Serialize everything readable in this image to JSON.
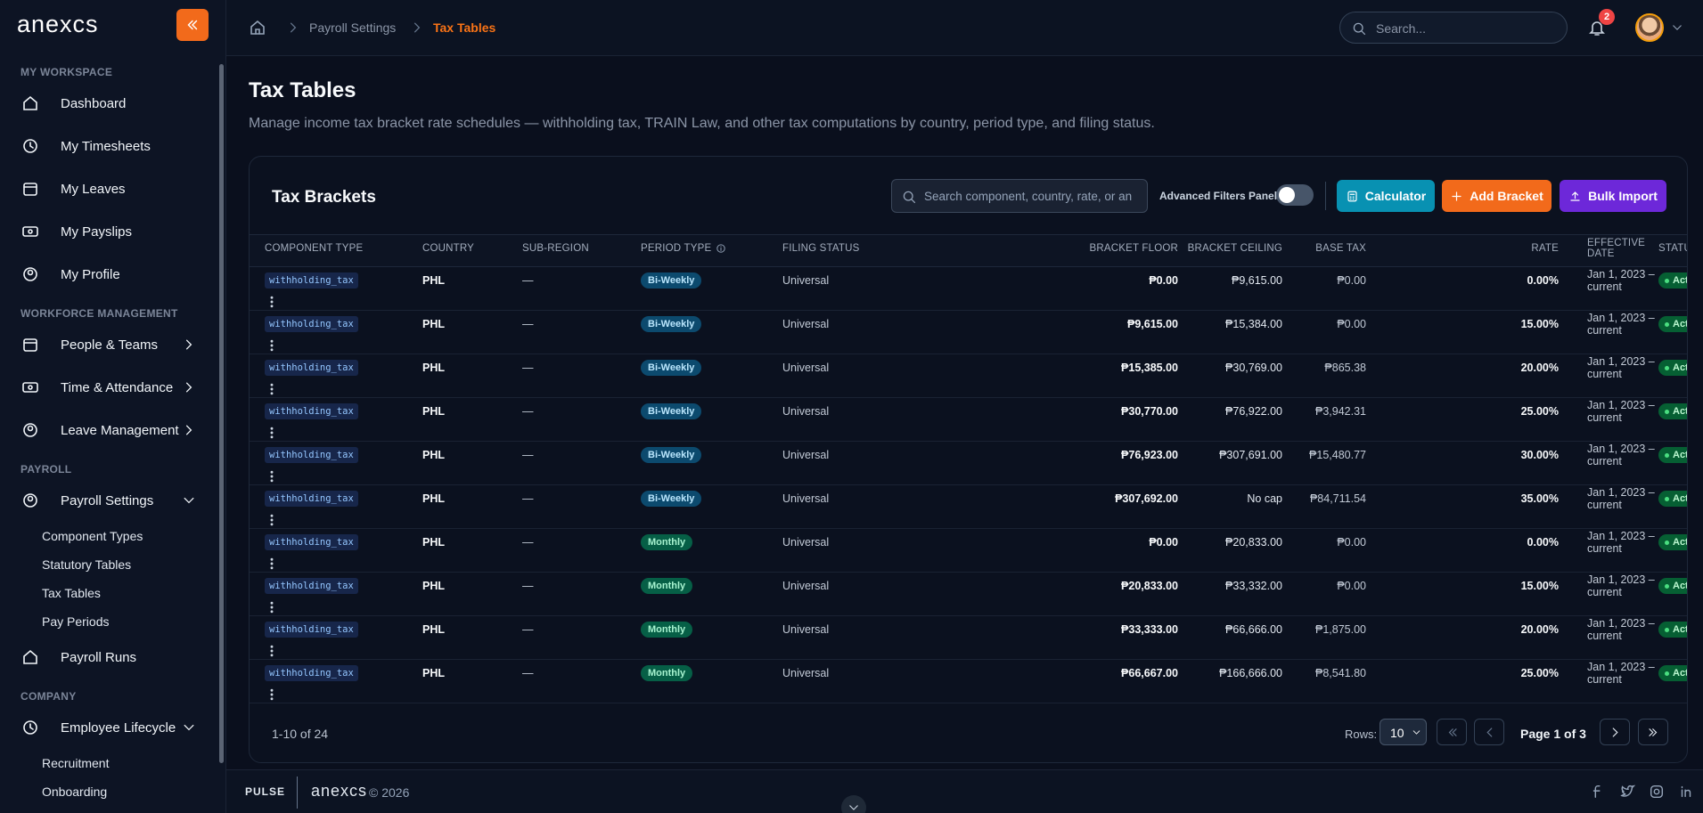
{
  "brand": "anexcs",
  "sidebar": {
    "sections": [
      {
        "title": "MY WORKSPACE",
        "items": [
          {
            "label": "Dashboard"
          },
          {
            "label": "My Timesheets"
          },
          {
            "label": "My Leaves"
          },
          {
            "label": "My Payslips"
          },
          {
            "label": "My Profile"
          }
        ]
      },
      {
        "title": "WORKFORCE MANAGEMENT",
        "items": [
          {
            "label": "People & Teams"
          },
          {
            "label": "Time & Attendance"
          },
          {
            "label": "Leave Management"
          }
        ]
      },
      {
        "title": "PAYROLL",
        "items": [
          {
            "label": "Payroll Settings",
            "children": [
              "Component Types",
              "Statutory Tables",
              "Tax Tables",
              "Pay Periods"
            ]
          },
          {
            "label": "Payroll Runs"
          }
        ]
      },
      {
        "title": "COMPANY",
        "items": [
          {
            "label": "Employee Lifecycle",
            "children": [
              "Recruitment",
              "Onboarding"
            ]
          }
        ]
      }
    ]
  },
  "breadcrumb": [
    "Payroll Settings",
    "Tax Tables"
  ],
  "search_placeholder": "Search...",
  "notifications": "2",
  "page": {
    "title": "Tax Tables",
    "description": "Manage income tax bracket rate schedules — withholding tax, TRAIN Law, and other tax computations by country, period type, and filing status."
  },
  "card": {
    "title": "Tax Brackets",
    "search_placeholder": "Search component, country, rate, or an",
    "toggle_label": "Advanced Filters Panel",
    "buttons": [
      "Calculator",
      "Add Bracket",
      "Bulk Import"
    ]
  },
  "table": {
    "columns": [
      "COMPONENT TYPE",
      "COUNTRY",
      "SUB-REGION",
      "PERIOD TYPE",
      "FILING STATUS",
      "BRACKET FLOOR",
      "BRACKET CEILING",
      "BASE TAX",
      "RATE",
      "EFFECTIVE DATE",
      "STATUS"
    ],
    "rows": [
      [
        "withholding_tax",
        "PHL",
        "—",
        "Bi-Weekly",
        "Universal",
        "₱0.00",
        "₱9,615.00",
        "₱0.00",
        "0.00%",
        "Jan 1, 2023 – current",
        "Active"
      ],
      [
        "withholding_tax",
        "PHL",
        "—",
        "Bi-Weekly",
        "Universal",
        "₱9,615.00",
        "₱15,384.00",
        "₱0.00",
        "15.00%",
        "Jan 1, 2023 – current",
        "Active"
      ],
      [
        "withholding_tax",
        "PHL",
        "—",
        "Bi-Weekly",
        "Universal",
        "₱15,385.00",
        "₱30,769.00",
        "₱865.38",
        "20.00%",
        "Jan 1, 2023 – current",
        "Active"
      ],
      [
        "withholding_tax",
        "PHL",
        "—",
        "Bi-Weekly",
        "Universal",
        "₱30,770.00",
        "₱76,922.00",
        "₱3,942.31",
        "25.00%",
        "Jan 1, 2023 – current",
        "Active"
      ],
      [
        "withholding_tax",
        "PHL",
        "—",
        "Bi-Weekly",
        "Universal",
        "₱76,923.00",
        "₱307,691.00",
        "₱15,480.77",
        "30.00%",
        "Jan 1, 2023 – current",
        "Active"
      ],
      [
        "withholding_tax",
        "PHL",
        "—",
        "Bi-Weekly",
        "Universal",
        "₱307,692.00",
        "No cap",
        "₱84,711.54",
        "35.00%",
        "Jan 1, 2023 – current",
        "Active"
      ],
      [
        "withholding_tax",
        "PHL",
        "—",
        "Monthly",
        "Universal",
        "₱0.00",
        "₱20,833.00",
        "₱0.00",
        "0.00%",
        "Jan 1, 2023 – current",
        "Active"
      ],
      [
        "withholding_tax",
        "PHL",
        "—",
        "Monthly",
        "Universal",
        "₱20,833.00",
        "₱33,332.00",
        "₱0.00",
        "15.00%",
        "Jan 1, 2023 – current",
        "Active"
      ],
      [
        "withholding_tax",
        "PHL",
        "—",
        "Monthly",
        "Universal",
        "₱33,333.00",
        "₱66,666.00",
        "₱1,875.00",
        "20.00%",
        "Jan 1, 2023 – current",
        "Active"
      ],
      [
        "withholding_tax",
        "PHL",
        "—",
        "Monthly",
        "Universal",
        "₱66,667.00",
        "₱166,666.00",
        "₱8,541.80",
        "25.00%",
        "Jan 1, 2023 – current",
        "Active"
      ]
    ]
  },
  "pagination": {
    "summary": "1-10 of 24",
    "rows_label": "Rows:",
    "rows_value": "10",
    "page": "Page 1 of 3"
  },
  "footer": {
    "label": "PULSE",
    "brand": "anexcs",
    "copyright": "© 2026"
  }
}
